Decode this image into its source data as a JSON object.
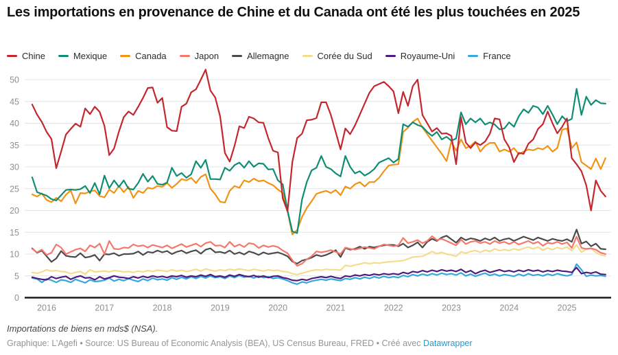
{
  "footer": {
    "note": "Importations de biens en mds$ (NSA).",
    "byline_prefix": "Graphique: L’Agefi • Source: US Bureau of Economic Analysis (BEA), US Census Bureau, FRED • Créé avec ",
    "link_label": "Datawrapper"
  },
  "chart_data": {
    "type": "line",
    "title": "Les importations en provenance de Chine et du Canada ont été les plus touchées en 2025",
    "x_unit": "month",
    "x_start": "2015-10",
    "x_end": "2025-09",
    "x_tick_labels": [
      "2016",
      "2017",
      "2018",
      "2019",
      "2020",
      "2021",
      "2022",
      "2023",
      "2024",
      "2025"
    ],
    "y_ticks": [
      0,
      5,
      10,
      15,
      20,
      25,
      30,
      35,
      40,
      45,
      50
    ],
    "ylim": [
      0,
      50
    ],
    "grid": "horizontal",
    "legend_position": "top",
    "axis_text_color": "#8f8f8f",
    "gridline_color": "#e4e4e4",
    "baseline_color": "#1a1a1a",
    "series": [
      {
        "id": "chine",
        "name": "Chine",
        "color": "#c4262d",
        "values": [
          44.3,
          42.0,
          40.3,
          38.0,
          36.4,
          29.7,
          33.5,
          37.4,
          38.7,
          39.9,
          39.2,
          43.4,
          42.1,
          43.8,
          42.6,
          39.4,
          32.7,
          34.2,
          38.1,
          41.4,
          42.7,
          41.9,
          43.8,
          45.8,
          48.1,
          48.2,
          44.7,
          45.8,
          39.1,
          38.3,
          38.2,
          43.8,
          44.5,
          47.1,
          47.8,
          50.0,
          52.3,
          47.5,
          45.9,
          41.6,
          33.2,
          31.2,
          34.8,
          39.3,
          38.9,
          41.5,
          41.1,
          40.2,
          40.1,
          36.6,
          33.7,
          33.3,
          22.8,
          19.8,
          31.1,
          36.6,
          37.6,
          40.7,
          40.8,
          41.2,
          44.8,
          44.8,
          41.9,
          38.0,
          34.0,
          38.8,
          37.5,
          39.5,
          42.0,
          44.5,
          47.0,
          48.5,
          49.0,
          49.5,
          48.5,
          47.3,
          42.3,
          47.2,
          44.0,
          48.5,
          50.0,
          41.9,
          40.0,
          38.1,
          38.9,
          37.6,
          37.7,
          37.1,
          30.6,
          41.4,
          35.6,
          34.3,
          35.6,
          35.0,
          35.8,
          37.6,
          41.1,
          40.9,
          36.3,
          34.5,
          31.1,
          33.2,
          33.0,
          35.3,
          36.3,
          38.7,
          39.8,
          42.7,
          40.0,
          37.7,
          39.2,
          41.1,
          32.0,
          30.6,
          29.0,
          25.8,
          20.0,
          26.9,
          24.5,
          23.2
        ]
      },
      {
        "id": "mexique",
        "name": "Mexique",
        "color": "#0e8d75",
        "values": [
          27.6,
          24.2,
          23.8,
          23.4,
          22.6,
          22.3,
          23.5,
          24.7,
          24.8,
          24.7,
          24.9,
          25.6,
          24.0,
          26.3,
          23.7,
          28.0,
          25.1,
          26.9,
          25.4,
          26.9,
          25.0,
          24.8,
          26.3,
          28.4,
          26.6,
          27.9,
          26.1,
          25.9,
          26.4,
          29.8,
          27.9,
          28.6,
          27.5,
          28.3,
          31.3,
          29.8,
          31.6,
          27.2,
          27.2,
          27.1,
          29.8,
          29.1,
          30.4,
          31.0,
          29.8,
          31.3,
          30.0,
          30.8,
          30.7,
          29.4,
          29.5,
          26.9,
          26.0,
          20.0,
          15.2,
          14.8,
          22.5,
          26.5,
          29.2,
          29.8,
          32.5,
          30.0,
          29.5,
          28.5,
          27.8,
          32.5,
          30.0,
          28.5,
          29.0,
          28.0,
          28.6,
          29.5,
          31.0,
          31.5,
          32.0,
          31.0,
          31.8,
          39.8,
          39.2,
          40.2,
          39.6,
          39.2,
          38.0,
          37.1,
          38.0,
          36.3,
          36.9,
          36.0,
          36.5,
          42.5,
          39.8,
          41.1,
          40.2,
          41.1,
          39.7,
          40.2,
          39.7,
          38.6,
          38.8,
          40.2,
          39.2,
          41.6,
          43.2,
          42.4,
          44.0,
          43.6,
          42.1,
          44.0,
          42.0,
          39.8,
          41.6,
          40.5,
          41.0,
          47.9,
          41.9,
          46.1,
          44.2,
          45.3,
          44.6,
          44.5
        ]
      },
      {
        "id": "canada",
        "name": "Canada",
        "color": "#f29213",
        "values": [
          23.7,
          23.2,
          23.9,
          22.4,
          21.9,
          22.9,
          22.1,
          23.6,
          24.6,
          21.6,
          24.0,
          23.9,
          24.4,
          24.6,
          23.3,
          23.0,
          24.8,
          24.0,
          25.6,
          24.2,
          25.4,
          22.9,
          24.5,
          24.0,
          25.2,
          25.0,
          25.6,
          25.4,
          26.3,
          25.2,
          26.1,
          27.2,
          26.9,
          27.5,
          26.3,
          27.7,
          28.3,
          25.0,
          23.7,
          22.0,
          21.8,
          24.5,
          25.6,
          25.2,
          26.9,
          26.5,
          27.3,
          26.7,
          26.9,
          26.3,
          25.8,
          24.8,
          24.0,
          19.8,
          14.5,
          15.5,
          18.5,
          20.6,
          22.1,
          23.8,
          24.2,
          24.5,
          24.0,
          24.7,
          23.5,
          25.5,
          25.0,
          26.0,
          26.5,
          25.5,
          26.5,
          26.5,
          27.5,
          29.0,
          30.3,
          30.5,
          30.6,
          38.0,
          39.0,
          40.3,
          41.1,
          39.0,
          37.5,
          36.0,
          34.5,
          33.0,
          31.3,
          35.8,
          33.7,
          36.3,
          34.3,
          34.8,
          35.8,
          33.5,
          34.8,
          35.5,
          35.5,
          33.5,
          34.0,
          33.5,
          34.3,
          32.9,
          33.5,
          34.0,
          33.8,
          34.3,
          34.0,
          34.8,
          33.5,
          34.3,
          38.5,
          38.8,
          34.3,
          35.6,
          31.1,
          30.3,
          29.5,
          31.9,
          29.5,
          32.0
        ]
      },
      {
        "id": "japon",
        "name": "Japon",
        "color": "#f4776d",
        "values": [
          11.2,
          10.4,
          11.0,
          9.8,
          10.3,
          12.2,
          11.5,
          10.0,
          10.5,
          11.0,
          11.3,
          10.6,
          12.0,
          11.5,
          12.4,
          10.0,
          13.0,
          11.2,
          11.1,
          11.5,
          11.4,
          12.2,
          11.8,
          12.0,
          11.5,
          12.1,
          11.8,
          11.5,
          12.0,
          11.3,
          11.8,
          12.3,
          11.6,
          12.0,
          12.4,
          11.7,
          12.5,
          12.8,
          11.9,
          12.0,
          11.5,
          12.8,
          11.7,
          12.2,
          11.6,
          12.5,
          12.3,
          11.4,
          12.0,
          11.6,
          11.9,
          11.6,
          10.8,
          10.2,
          8.6,
          7.3,
          7.8,
          8.8,
          9.5,
          10.6,
          10.4,
          10.6,
          10.9,
          10.5,
          10.0,
          11.5,
          11.2,
          11.0,
          11.3,
          11.6,
          11.4,
          11.2,
          11.8,
          12.2,
          12.0,
          11.8,
          12.0,
          13.7,
          12.5,
          12.8,
          13.2,
          12.5,
          13.0,
          14.1,
          13.2,
          13.5,
          13.0,
          12.5,
          12.0,
          13.3,
          12.3,
          12.8,
          13.0,
          12.5,
          12.8,
          12.3,
          13.0,
          12.5,
          12.8,
          12.3,
          12.8,
          12.2,
          12.6,
          13.0,
          12.4,
          12.8,
          11.9,
          12.6,
          12.4,
          12.8,
          12.3,
          12.7,
          11.4,
          14.0,
          11.4,
          11.2,
          11.3,
          11.0,
          10.3,
          10.0
        ]
      },
      {
        "id": "allemagne",
        "name": "Allemagne",
        "color": "#4a4a4a",
        "values": [
          11.3,
          10.3,
          10.8,
          9.5,
          8.2,
          9.0,
          10.7,
          9.6,
          9.4,
          9.3,
          10.2,
          9.2,
          9.4,
          9.8,
          8.5,
          10.0,
          9.9,
          10.2,
          9.6,
          10.0,
          10.0,
          10.1,
          10.6,
          9.8,
          10.5,
          10.3,
          10.8,
          10.4,
          10.7,
          10.0,
          10.5,
          10.8,
          10.2,
          10.6,
          10.9,
          10.1,
          11.0,
          11.3,
          10.4,
          10.5,
          10.2,
          10.8,
          10.0,
          10.4,
          9.9,
          10.6,
          10.3,
          9.8,
          10.4,
          10.0,
          10.2,
          10.4,
          10.0,
          9.5,
          8.3,
          7.8,
          8.5,
          8.8,
          9.2,
          9.8,
          9.5,
          9.8,
          10.3,
          10.9,
          9.3,
          11.4,
          11.0,
          11.2,
          11.7,
          11.2,
          11.7,
          11.5,
          11.8,
          12.0,
          12.1,
          12.1,
          11.8,
          12.4,
          11.5,
          12.0,
          12.7,
          11.5,
          12.8,
          13.5,
          13.0,
          13.8,
          14.2,
          13.4,
          12.6,
          13.8,
          13.2,
          13.6,
          13.4,
          13.0,
          13.6,
          13.2,
          13.8,
          13.0,
          13.4,
          13.6,
          13.0,
          13.5,
          14.0,
          13.6,
          13.2,
          13.8,
          13.4,
          13.0,
          13.5,
          13.2,
          13.0,
          13.4,
          12.8,
          15.6,
          12.4,
          12.9,
          11.8,
          12.4,
          11.2,
          11.1
        ]
      },
      {
        "id": "coree-du-sud",
        "name": "Corée du Sud",
        "color": "#f3dc8c",
        "values": [
          5.8,
          5.6,
          5.9,
          6.4,
          6.1,
          6.2,
          6.0,
          5.9,
          5.5,
          5.8,
          6.0,
          5.4,
          6.4,
          5.9,
          6.0,
          6.1,
          5.9,
          6.2,
          6.1,
          5.9,
          6.0,
          5.8,
          6.1,
          5.9,
          6.2,
          6.0,
          6.3,
          6.2,
          6.0,
          6.4,
          6.1,
          6.3,
          6.0,
          6.2,
          6.5,
          6.1,
          6.6,
          6.3,
          6.1,
          6.4,
          6.2,
          6.5,
          6.3,
          6.6,
          6.4,
          6.2,
          6.5,
          6.3,
          6.1,
          6.4,
          6.2,
          6.3,
          6.0,
          5.9,
          5.5,
          5.3,
          5.6,
          5.9,
          6.2,
          6.4,
          6.3,
          6.5,
          6.4,
          6.4,
          6.3,
          7.4,
          7.2,
          7.5,
          7.7,
          8.0,
          7.8,
          8.0,
          7.9,
          8.1,
          8.2,
          8.3,
          8.4,
          8.5,
          8.9,
          9.3,
          9.4,
          9.5,
          10.0,
          10.6,
          10.1,
          10.4,
          10.0,
          9.8,
          9.5,
          10.5,
          10.2,
          10.6,
          10.8,
          10.4,
          10.9,
          10.6,
          11.2,
          10.8,
          11.0,
          10.8,
          11.2,
          10.9,
          11.3,
          11.6,
          11.2,
          11.6,
          10.9,
          11.4,
          11.0,
          11.5,
          11.2,
          11.6,
          10.8,
          12.1,
          10.4,
          11.1,
          11.3,
          10.4,
          9.8,
          9.6
        ]
      },
      {
        "id": "royaume-uni",
        "name": "Royaume-Uni",
        "color": "#4d1a7f",
        "values": [
          4.7,
          4.4,
          4.2,
          4.1,
          4.8,
          4.4,
          4.7,
          4.9,
          4.2,
          4.7,
          5.0,
          4.5,
          4.6,
          4.1,
          4.8,
          4.3,
          4.6,
          5.0,
          4.7,
          4.6,
          4.4,
          4.8,
          4.5,
          4.9,
          4.6,
          5.0,
          4.7,
          4.9,
          4.6,
          5.0,
          4.8,
          5.1,
          4.7,
          5.0,
          4.8,
          5.2,
          4.9,
          5.3,
          4.8,
          5.0,
          4.7,
          5.2,
          4.9,
          5.3,
          5.0,
          4.8,
          5.1,
          4.7,
          5.0,
          4.6,
          4.9,
          5.0,
          4.6,
          4.4,
          4.0,
          3.9,
          4.2,
          4.0,
          4.4,
          4.6,
          4.8,
          4.6,
          4.9,
          4.6,
          4.4,
          5.0,
          4.8,
          5.2,
          5.0,
          5.3,
          5.1,
          5.4,
          5.2,
          5.5,
          5.3,
          5.5,
          5.3,
          5.8,
          5.5,
          6.0,
          5.8,
          6.2,
          5.9,
          6.3,
          6.0,
          6.4,
          6.1,
          6.3,
          6.0,
          6.5,
          5.8,
          6.2,
          5.5,
          6.0,
          6.3,
          5.8,
          6.1,
          6.4,
          6.0,
          6.2,
          5.9,
          6.3,
          6.0,
          6.4,
          6.1,
          6.3,
          5.9,
          6.2,
          6.0,
          6.3,
          6.1,
          6.0,
          5.8,
          6.9,
          5.5,
          5.8,
          5.6,
          5.9,
          5.4,
          5.3
        ]
      },
      {
        "id": "france",
        "name": "France",
        "color": "#34a8d8",
        "values": [
          4.5,
          4.3,
          3.5,
          4.3,
          4.0,
          3.5,
          4.1,
          3.9,
          3.5,
          4.2,
          3.8,
          3.4,
          4.1,
          3.7,
          3.8,
          4.0,
          4.5,
          3.8,
          4.2,
          3.9,
          4.4,
          4.0,
          3.7,
          4.3,
          3.9,
          4.5,
          4.1,
          4.3,
          4.0,
          4.6,
          4.2,
          4.7,
          4.3,
          4.8,
          4.4,
          4.9,
          4.5,
          5.0,
          4.6,
          4.8,
          4.4,
          5.0,
          4.6,
          5.1,
          4.7,
          4.9,
          4.5,
          5.0,
          4.6,
          4.8,
          4.4,
          4.6,
          4.3,
          3.9,
          3.4,
          3.1,
          3.6,
          3.4,
          3.8,
          4.0,
          4.2,
          4.0,
          4.3,
          4.1,
          3.9,
          4.4,
          4.2,
          4.6,
          4.3,
          4.7,
          4.4,
          4.8,
          4.5,
          4.9,
          4.6,
          4.8,
          4.6,
          5.1,
          4.8,
          5.3,
          5.0,
          5.4,
          5.1,
          5.5,
          5.2,
          5.6,
          5.3,
          5.5,
          5.2,
          5.7,
          5.0,
          5.4,
          4.9,
          5.3,
          5.6,
          5.1,
          5.4,
          5.0,
          5.3,
          5.1,
          4.9,
          5.4,
          5.0,
          5.5,
          5.1,
          5.3,
          5.0,
          5.4,
          5.1,
          5.5,
          5.2,
          5.0,
          5.3,
          7.7,
          6.4,
          4.9,
          5.2,
          5.0,
          5.1,
          4.9
        ]
      }
    ]
  }
}
